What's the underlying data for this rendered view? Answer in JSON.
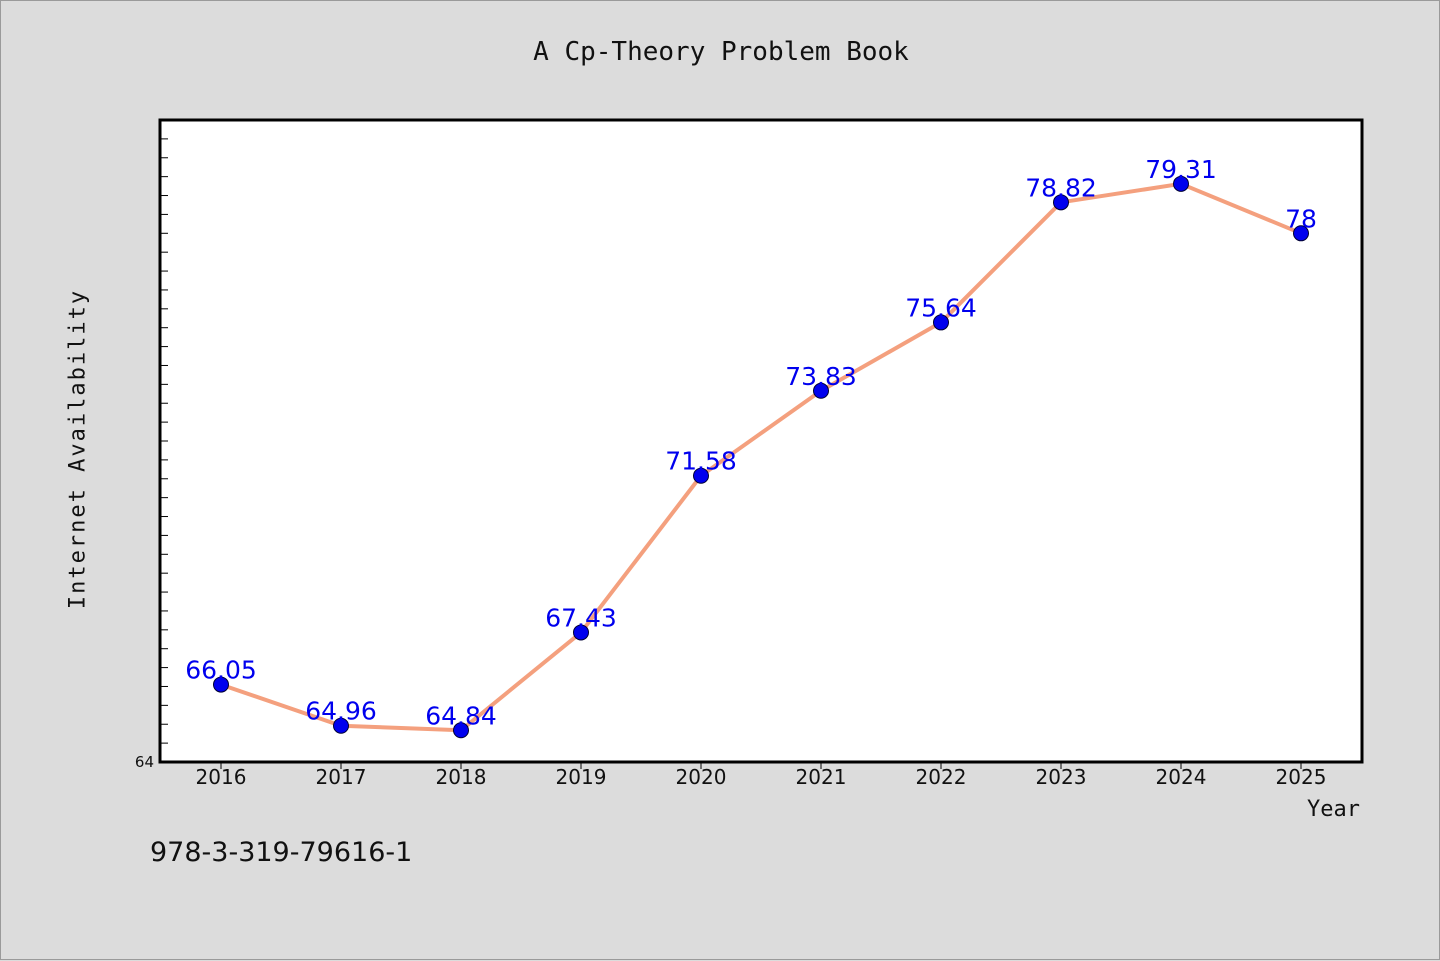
{
  "chart_data": {
    "type": "line",
    "title": "A Cp-Theory Problem Book",
    "xlabel": "Year",
    "ylabel": "Internet Availability",
    "categories": [
      "2016",
      "2017",
      "2018",
      "2019",
      "2020",
      "2021",
      "2022",
      "2023",
      "2024",
      "2025"
    ],
    "series": [
      {
        "values": [
          66.05,
          64.96,
          64.84,
          67.43,
          71.58,
          73.83,
          75.64,
          78.82,
          79.31,
          78
        ],
        "data_labels": [
          "66.05",
          "64.96",
          "64.84",
          "67.43",
          "71.58",
          "73.83",
          "75.64",
          "78.82",
          "79.31",
          "78"
        ]
      }
    ],
    "y_tick_labels": [
      "64"
    ],
    "ylim": [
      64,
      81
    ],
    "grid": false,
    "colors": {
      "line": "#f4a07e",
      "marker": "#0000ee",
      "label": "#0000ee",
      "background": "#dcdcdc",
      "plot_bg": "#ffffff"
    }
  },
  "footer": {
    "isbn": "978-3-319-79616-1"
  }
}
